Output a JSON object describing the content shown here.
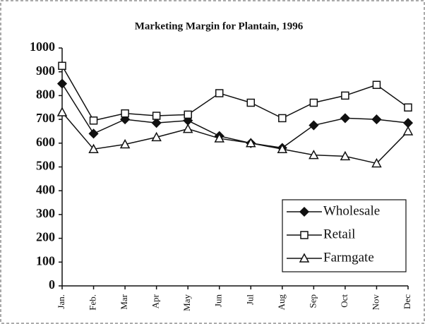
{
  "chart_data": {
    "type": "line",
    "title": "Marketing Margin for Plantain, 1996",
    "categories": [
      "Jan.",
      "Feb.",
      "Mar",
      "Apr",
      "May",
      "Jun",
      "Jul",
      "Aug",
      "Sep",
      "Oct",
      "Nov",
      "Dec"
    ],
    "series": [
      {
        "name": "Wholesale",
        "color": "#111111",
        "marker": "diamond",
        "values": [
          850,
          640,
          700,
          685,
          695,
          630,
          600,
          580,
          675,
          705,
          700,
          685
        ]
      },
      {
        "name": "Retail",
        "color": "#111111",
        "marker": "square",
        "values": [
          925,
          695,
          725,
          715,
          720,
          810,
          770,
          705,
          770,
          800,
          845,
          750
        ]
      },
      {
        "name": "Farmgate",
        "color": "#111111",
        "marker": "triangle",
        "values": [
          730,
          575,
          595,
          625,
          660,
          620,
          600,
          575,
          550,
          545,
          515,
          650
        ]
      }
    ],
    "ylim": [
      0,
      1000
    ],
    "yticks": [
      0,
      100,
      200,
      300,
      400,
      500,
      600,
      700,
      800,
      900,
      1000
    ],
    "grid": false,
    "legend": "lower right"
  }
}
